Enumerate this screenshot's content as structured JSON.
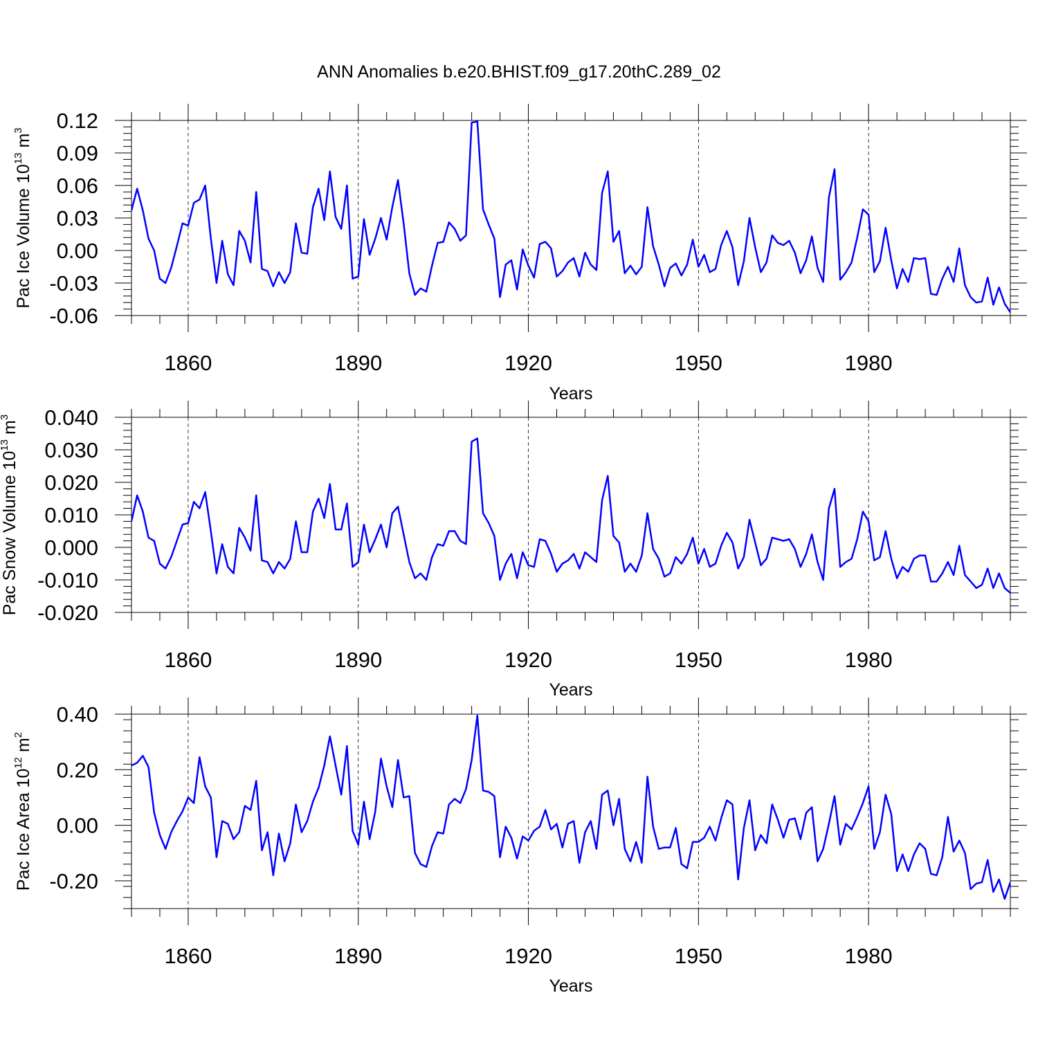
{
  "figure": {
    "title": "ANN Anomalies b.e20.BHIST.f09_g17.20thC.289_02"
  },
  "chart_data": [
    {
      "type": "line",
      "name": "pac-ice-volume",
      "ylabel_main": "Pac Ice Volume 10",
      "ylabel_exp": "13",
      "ylabel_unit": " m",
      "ylabel_unit_exp": "3",
      "xlabel": "Years",
      "xlim": [
        1850,
        2005
      ],
      "ylim": [
        -0.06,
        0.12
      ],
      "yticks": [
        -0.06,
        -0.03,
        0.0,
        0.03,
        0.06,
        0.09,
        0.12
      ],
      "ytick_labels": [
        "-0.06",
        "-0.03",
        "0.00",
        "0.03",
        "0.06",
        "0.09",
        "0.12"
      ],
      "xticks": [
        1860,
        1890,
        1920,
        1950,
        1980
      ],
      "xtick_labels": [
        "1860",
        "1890",
        "1920",
        "1950",
        "1980"
      ],
      "color": "#0000ff",
      "x_start": 1850,
      "values": [
        0.037,
        0.057,
        0.037,
        0.011,
        0.0,
        -0.026,
        -0.03,
        -0.016,
        0.004,
        0.025,
        0.023,
        0.044,
        0.047,
        0.06,
        0.011,
        -0.03,
        0.009,
        -0.022,
        -0.032,
        0.018,
        0.009,
        -0.011,
        0.054,
        -0.017,
        -0.019,
        -0.033,
        -0.02,
        -0.03,
        -0.02,
        0.025,
        -0.002,
        -0.003,
        0.04,
        0.057,
        0.028,
        0.073,
        0.031,
        0.02,
        0.06,
        -0.026,
        -0.024,
        0.029,
        -0.004,
        0.011,
        0.03,
        0.01,
        0.04,
        0.065,
        0.025,
        -0.021,
        -0.041,
        -0.035,
        -0.038,
        -0.014,
        0.007,
        0.008,
        0.026,
        0.02,
        0.009,
        0.014,
        0.118,
        0.119,
        0.038,
        0.024,
        0.011,
        -0.043,
        -0.013,
        -0.009,
        -0.036,
        0.001,
        -0.014,
        -0.025,
        0.006,
        0.008,
        0.002,
        -0.024,
        -0.019,
        -0.011,
        -0.007,
        -0.024,
        -0.002,
        -0.013,
        -0.018,
        0.053,
        0.073,
        0.008,
        0.018,
        -0.021,
        -0.014,
        -0.022,
        -0.015,
        0.04,
        0.004,
        -0.013,
        -0.033,
        -0.016,
        -0.012,
        -0.023,
        -0.013,
        0.01,
        -0.015,
        -0.004,
        -0.02,
        -0.017,
        0.005,
        0.018,
        0.003,
        -0.032,
        -0.01,
        0.03,
        0.003,
        -0.02,
        -0.011,
        0.014,
        0.007,
        0.005,
        0.009,
        -0.002,
        -0.021,
        -0.009,
        0.013,
        -0.016,
        -0.029,
        0.049,
        0.075,
        -0.027,
        -0.02,
        -0.011,
        0.012,
        0.038,
        0.033,
        -0.02,
        -0.01,
        0.021,
        -0.009,
        -0.035,
        -0.017,
        -0.029,
        -0.007,
        -0.008,
        -0.007,
        -0.04,
        -0.041,
        -0.026,
        -0.015,
        -0.029,
        0.002,
        -0.032,
        -0.043,
        -0.048,
        -0.047,
        -0.025,
        -0.05,
        -0.034,
        -0.049,
        -0.057
      ]
    },
    {
      "type": "line",
      "name": "pac-snow-volume",
      "ylabel_main": "Pac Snow Volume 10",
      "ylabel_exp": "13",
      "ylabel_unit": " m",
      "ylabel_unit_exp": "3",
      "xlabel": "Years",
      "xlim": [
        1850,
        2005
      ],
      "ylim": [
        -0.02,
        0.04
      ],
      "yticks": [
        -0.02,
        -0.01,
        0.0,
        0.01,
        0.02,
        0.03,
        0.04
      ],
      "ytick_labels": [
        "-0.020",
        "-0.010",
        "0.000",
        "0.010",
        "0.020",
        "0.030",
        "0.040"
      ],
      "xticks": [
        1860,
        1890,
        1920,
        1950,
        1980
      ],
      "xtick_labels": [
        "1860",
        "1890",
        "1920",
        "1950",
        "1980"
      ],
      "color": "#0000ff",
      "x_start": 1850,
      "values": [
        0.008,
        0.016,
        0.011,
        0.003,
        0.002,
        -0.005,
        -0.0065,
        -0.003,
        0.002,
        0.007,
        0.0075,
        0.014,
        0.012,
        0.017,
        0.005,
        -0.008,
        0.001,
        -0.006,
        -0.008,
        0.006,
        0.003,
        -0.001,
        0.016,
        -0.004,
        -0.0045,
        -0.008,
        -0.0045,
        -0.0065,
        -0.0035,
        0.008,
        -0.0015,
        -0.0015,
        0.011,
        0.015,
        0.009,
        0.0195,
        0.0055,
        0.0055,
        0.0135,
        -0.006,
        -0.0045,
        0.007,
        -0.0015,
        0.0025,
        0.007,
        0.0,
        0.0105,
        0.0125,
        0.004,
        -0.0045,
        -0.0095,
        -0.008,
        -0.01,
        -0.003,
        0.001,
        0.0005,
        0.005,
        0.005,
        0.002,
        0.001,
        0.0325,
        0.0335,
        0.0105,
        0.0075,
        0.0035,
        -0.01,
        -0.005,
        -0.002,
        -0.0095,
        -0.0015,
        -0.0055,
        -0.006,
        0.0025,
        0.002,
        -0.002,
        -0.0075,
        -0.005,
        -0.004,
        -0.002,
        -0.0065,
        -0.0015,
        -0.003,
        -0.0045,
        0.0145,
        0.022,
        0.0035,
        0.0015,
        -0.0075,
        -0.005,
        -0.0075,
        -0.0025,
        0.0105,
        -0.0005,
        -0.0035,
        -0.009,
        -0.008,
        -0.003,
        -0.005,
        -0.002,
        0.003,
        -0.005,
        -0.0005,
        -0.006,
        -0.005,
        0.0005,
        0.0045,
        0.0015,
        -0.0065,
        -0.003,
        0.0085,
        0.0015,
        -0.0055,
        -0.0035,
        0.003,
        0.0025,
        0.002,
        0.0025,
        -0.0005,
        -0.006,
        -0.002,
        0.004,
        -0.0045,
        -0.01,
        0.012,
        0.018,
        -0.006,
        -0.0045,
        -0.0035,
        0.0025,
        0.011,
        0.008,
        -0.004,
        -0.003,
        0.005,
        -0.0035,
        -0.0095,
        -0.006,
        -0.0075,
        -0.0035,
        -0.0025,
        -0.0025,
        -0.0105,
        -0.0105,
        -0.008,
        -0.0045,
        -0.0085,
        0.0005,
        -0.0085,
        -0.0105,
        -0.0125,
        -0.0115,
        -0.0065,
        -0.0125,
        -0.008,
        -0.0125,
        -0.014
      ]
    },
    {
      "type": "line",
      "name": "pac-ice-area",
      "ylabel_main": "Pac Ice Area 10",
      "ylabel_exp": "12",
      "ylabel_unit": " m",
      "ylabel_unit_exp": "2",
      "xlabel": "Years",
      "xlim": [
        1850,
        2005
      ],
      "ylim": [
        -0.3,
        0.4
      ],
      "yticks": [
        -0.2,
        0.0,
        0.2,
        0.4
      ],
      "ytick_labels": [
        "-0.20",
        "0.00",
        "0.20",
        "0.40"
      ],
      "xticks": [
        1860,
        1890,
        1920,
        1950,
        1980
      ],
      "xtick_labels": [
        "1860",
        "1890",
        "1920",
        "1950",
        "1980"
      ],
      "color": "#0000ff",
      "x_start": 1850,
      "values": [
        0.215,
        0.225,
        0.25,
        0.21,
        0.045,
        -0.035,
        -0.085,
        -0.025,
        0.015,
        0.05,
        0.1,
        0.08,
        0.245,
        0.14,
        0.1,
        -0.115,
        0.015,
        0.005,
        -0.05,
        -0.025,
        0.07,
        0.055,
        0.16,
        -0.09,
        -0.025,
        -0.18,
        -0.03,
        -0.13,
        -0.065,
        0.075,
        -0.025,
        0.015,
        0.085,
        0.135,
        0.215,
        0.32,
        0.215,
        0.11,
        0.285,
        -0.02,
        -0.07,
        0.085,
        -0.05,
        0.05,
        0.24,
        0.14,
        0.065,
        0.235,
        0.1,
        0.105,
        -0.1,
        -0.14,
        -0.15,
        -0.075,
        -0.025,
        -0.03,
        0.075,
        0.095,
        0.08,
        0.13,
        0.235,
        0.395,
        0.125,
        0.12,
        0.105,
        -0.115,
        -0.005,
        -0.045,
        -0.12,
        -0.04,
        -0.055,
        -0.02,
        -0.005,
        0.055,
        -0.015,
        0.005,
        -0.08,
        0.005,
        0.015,
        -0.135,
        -0.025,
        0.015,
        -0.085,
        0.11,
        0.125,
        0.0,
        0.095,
        -0.085,
        -0.13,
        -0.06,
        -0.135,
        0.175,
        -0.005,
        -0.085,
        -0.08,
        -0.08,
        -0.01,
        -0.14,
        -0.155,
        -0.06,
        -0.06,
        -0.045,
        -0.005,
        -0.055,
        0.025,
        0.09,
        0.075,
        -0.195,
        -0.01,
        0.09,
        -0.09,
        -0.035,
        -0.065,
        0.075,
        0.02,
        -0.045,
        0.02,
        0.025,
        -0.05,
        0.045,
        0.065,
        -0.13,
        -0.085,
        0.005,
        0.105,
        -0.07,
        0.005,
        -0.015,
        0.03,
        0.08,
        0.14,
        -0.085,
        -0.025,
        0.11,
        0.04,
        -0.165,
        -0.105,
        -0.165,
        -0.105,
        -0.065,
        -0.085,
        -0.175,
        -0.18,
        -0.115,
        0.03,
        -0.095,
        -0.055,
        -0.1,
        -0.23,
        -0.21,
        -0.205,
        -0.125,
        -0.24,
        -0.195,
        -0.265,
        -0.205
      ]
    }
  ]
}
